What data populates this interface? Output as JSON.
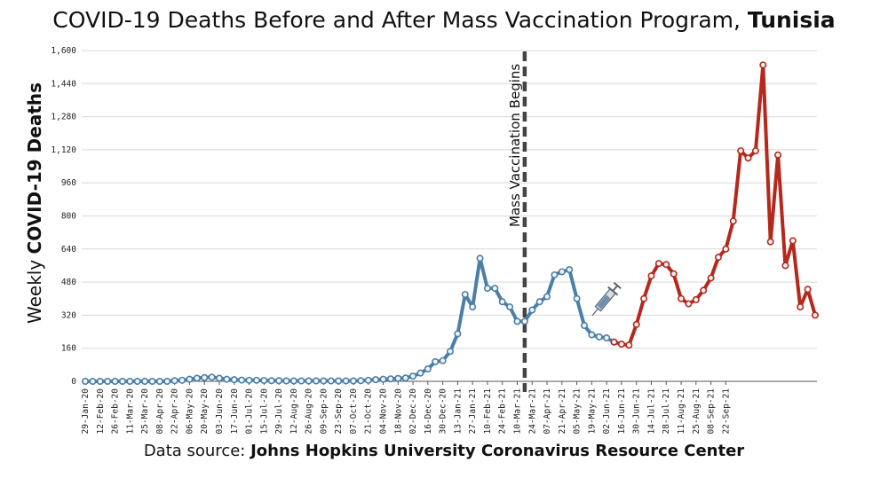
{
  "title": {
    "main": "COVID-19 Deaths Before and After Mass Vaccination Program, ",
    "country": "Tunisia"
  },
  "source": {
    "prefix": "Data source: ",
    "name": "Johns Hopkins University Coronavirus Resource Center"
  },
  "chart_data": {
    "type": "line",
    "ylabel_prefix": "Weekly ",
    "ylabel_bold": "COVID-19 Deaths",
    "ylim": [
      0,
      1600
    ],
    "yticks": [
      "0",
      "160",
      "320",
      "480",
      "640",
      "800",
      "960",
      "1,120",
      "1,280",
      "1,440",
      "1,600"
    ],
    "ytick_values": [
      0,
      160,
      320,
      480,
      640,
      800,
      960,
      1120,
      1280,
      1440,
      1600
    ],
    "x_tick_labels": [
      "29-Jan-20",
      "12-Feb-20",
      "26-Feb-20",
      "11-Mar-20",
      "25-Mar-20",
      "08-Apr-20",
      "22-Apr-20",
      "06-May-20",
      "20-May-20",
      "03-Jun-20",
      "17-Jun-20",
      "01-Jul-20",
      "15-Jul-20",
      "29-Jul-20",
      "12-Aug-20",
      "26-Aug-20",
      "09-Sep-20",
      "23-Sep-20",
      "07-Oct-20",
      "21-Oct-20",
      "04-Nov-20",
      "18-Nov-20",
      "02-Dec-20",
      "16-Dec-20",
      "30-Dec-20",
      "13-Jan-21",
      "27-Jan-21",
      "10-Feb-21",
      "24-Feb-21",
      "10-Mar-21",
      "24-Mar-21",
      "07-Apr-21",
      "21-Apr-21",
      "05-May-21",
      "19-May-21",
      "02-Jun-21",
      "16-Jun-21",
      "30-Jun-21",
      "14-Jul-21",
      "28-Jul-21",
      "11-Aug-21",
      "25-Aug-21",
      "08-Sep-21",
      "22-Sep-21"
    ],
    "grid": true,
    "annotation": "Mass Vaccination Begins",
    "annotation_week_index": 59,
    "series": [
      {
        "color": "#4a7fa8",
        "values": [
          0,
          0,
          0,
          0,
          0,
          0,
          0,
          0,
          0,
          0,
          0,
          0,
          3,
          5,
          10,
          15,
          18,
          20,
          15,
          10,
          8,
          6,
          5,
          5,
          4,
          3,
          3,
          2,
          2,
          2,
          2,
          2,
          2,
          2,
          2,
          2,
          2,
          3,
          5,
          8,
          10,
          12,
          14,
          16,
          25,
          40,
          60,
          95,
          100,
          145,
          230,
          420,
          360,
          595,
          450,
          450,
          385,
          360,
          290,
          290,
          345,
          385,
          410,
          515,
          530,
          540,
          400,
          270,
          225,
          215,
          210,
          190
        ]
      },
      {
        "color": "#b5281c",
        "values": [
          190,
          180,
          175,
          275,
          400,
          510,
          570,
          565,
          520,
          400,
          375,
          395,
          440,
          500,
          600,
          640,
          775,
          1115,
          1080,
          1115,
          1530,
          675,
          1095,
          560,
          680,
          360,
          445,
          320
        ]
      }
    ]
  }
}
